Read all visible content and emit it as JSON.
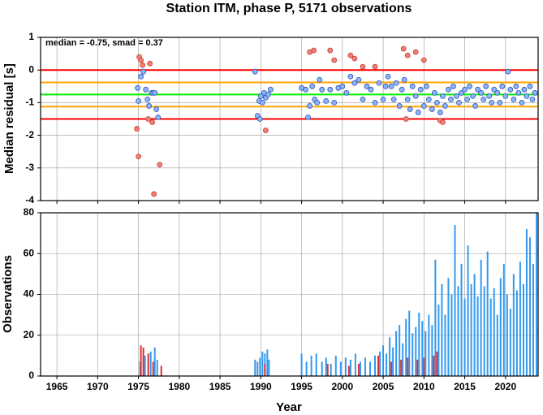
{
  "chart_data": [
    {
      "type": "scatter",
      "title": "Station ITM, phase P, 5171 observations",
      "ylabel": "Median residual [s]",
      "annotation": "median = -0.75, smad = 0.37",
      "xlim": [
        1963,
        2024
      ],
      "ylim": [
        -4,
        1
      ],
      "xticks": [
        1965,
        1970,
        1975,
        1980,
        1985,
        1990,
        1995,
        2000,
        2005,
        2010,
        2015,
        2020
      ],
      "yticks": [
        1,
        0,
        -1,
        -2,
        -3,
        -4
      ],
      "grid": true,
      "hlines": [
        {
          "value": 0,
          "color": "#ff0000"
        },
        {
          "value": -1.5,
          "color": "#ff0000"
        },
        {
          "value": -0.38,
          "color": "#ffa500"
        },
        {
          "value": -1.12,
          "color": "#ffa500"
        },
        {
          "value": -0.75,
          "color": "#00ee00"
        }
      ],
      "series": [
        {
          "color": "#8ab4ff",
          "x": [
            1974.9,
            1975.0,
            1975.3,
            1975.6,
            1975.9,
            1976.1,
            1976.3,
            1976.6,
            1976.8,
            1977.0,
            1977.2,
            1977.4,
            1989.3,
            1989.6,
            1989.8,
            1989.9,
            1990.0,
            1990.2,
            1990.4,
            1990.6,
            1990.9,
            1991.2,
            1995.0,
            1995.5,
            1995.8,
            1996.0,
            1996.3,
            1996.6,
            1996.9,
            1997.2,
            1997.5,
            1998.0,
            1998.5,
            1999.0,
            1999.5,
            2000.0,
            2000.5,
            2001.0,
            2001.5,
            2002.0,
            2002.5,
            2003.0,
            2003.5,
            2004.0,
            2004.5,
            2005.0,
            2005.3,
            2005.6,
            2006.0,
            2006.3,
            2006.6,
            2007.0,
            2007.3,
            2007.6,
            2008.0,
            2008.3,
            2008.6,
            2009.0,
            2009.3,
            2009.6,
            2010.0,
            2010.3,
            2010.6,
            2011.0,
            2011.3,
            2011.6,
            2012.0,
            2012.3,
            2012.6,
            2013.0,
            2013.3,
            2013.6,
            2014.0,
            2014.3,
            2014.6,
            2015.0,
            2015.3,
            2015.6,
            2016.0,
            2016.3,
            2016.6,
            2017.0,
            2017.3,
            2017.6,
            2018.0,
            2018.3,
            2018.6,
            2019.0,
            2019.3,
            2019.6,
            2020.0,
            2020.3,
            2020.6,
            2021.0,
            2021.3,
            2021.6,
            2022.0,
            2022.3,
            2022.6,
            2023.0,
            2023.3,
            2023.6
          ],
          "values": [
            -0.55,
            -0.95,
            -0.2,
            -0.05,
            -0.6,
            -0.9,
            -1.1,
            -0.7,
            -0.7,
            -0.7,
            -1.2,
            -1.45,
            -0.05,
            -1.4,
            -0.95,
            -1.5,
            -0.8,
            -1.0,
            -0.7,
            -0.85,
            -0.75,
            -0.6,
            -0.55,
            -0.6,
            -1.45,
            -1.1,
            -0.5,
            -0.9,
            -1.0,
            -0.3,
            -0.6,
            -0.95,
            -0.6,
            -1.0,
            -0.55,
            -0.5,
            -0.7,
            -0.2,
            -0.4,
            -0.3,
            -0.9,
            -0.5,
            -0.6,
            -1.0,
            -0.4,
            -0.9,
            -0.5,
            -0.2,
            -0.5,
            -0.9,
            -0.4,
            -1.1,
            -0.6,
            -0.3,
            -0.9,
            -1.2,
            -0.5,
            -0.8,
            -1.3,
            -0.6,
            -1.1,
            -0.5,
            -0.9,
            -1.2,
            -0.7,
            -1.0,
            -1.3,
            -0.8,
            -1.1,
            -0.6,
            -0.9,
            -0.5,
            -0.8,
            -1.0,
            -0.7,
            -0.6,
            -0.9,
            -0.5,
            -0.8,
            -1.1,
            -0.6,
            -0.7,
            -0.9,
            -0.5,
            -0.8,
            -1.0,
            -0.6,
            -0.7,
            -1.0,
            -0.5,
            -0.8,
            -0.05,
            -0.6,
            -0.9,
            -0.5,
            -0.7,
            -1.0,
            -0.6,
            -0.8,
            -0.5,
            -0.9,
            -0.7
          ]
        },
        {
          "color": "#f08070",
          "x": [
            1975.1,
            1975.3,
            1975.5,
            1976.4,
            1974.8,
            1975.0,
            1976.2,
            1976.7,
            1977.6,
            1976.9,
            1990.6,
            1996.0,
            1996.5,
            1998.5,
            1999.0,
            2001.0,
            2001.5,
            2002.5,
            2004.0,
            2007.5,
            2008.0,
            2009.0,
            2010.0,
            2007.8,
            2012.0,
            2012.3
          ],
          "values": [
            0.4,
            0.3,
            0.15,
            0.2,
            -1.8,
            -2.65,
            -1.5,
            -1.6,
            -2.9,
            -3.8,
            -1.85,
            0.55,
            0.6,
            0.6,
            0.3,
            0.45,
            0.35,
            0.1,
            0.1,
            0.65,
            0.45,
            0.55,
            0.3,
            -1.5,
            -1.55,
            -1.6
          ]
        }
      ]
    },
    {
      "type": "bar",
      "ylabel": "Observations",
      "xlabel": "Year",
      "xlim": [
        1963,
        2024
      ],
      "ylim": [
        0,
        80
      ],
      "xticks": [
        1965,
        1970,
        1975,
        1980,
        1985,
        1990,
        1995,
        2000,
        2005,
        2010,
        2015,
        2020
      ],
      "yticks": [
        0,
        20,
        40,
        60,
        80
      ],
      "grid": true,
      "series": [
        {
          "color": "#3399ee",
          "x": [
            1975.2,
            1975.8,
            1976.5,
            1977.0,
            1977.3,
            1989.3,
            1989.6,
            1989.9,
            1990.2,
            1990.5,
            1990.8,
            1991.0,
            1995.0,
            1995.6,
            1996.2,
            1996.8,
            1997.5,
            1998.0,
            1998.6,
            1999.2,
            1999.8,
            2000.4,
            2001.0,
            2001.6,
            2002.2,
            2002.8,
            2003.4,
            2004.0,
            2004.6,
            2005.0,
            2005.4,
            2005.8,
            2006.2,
            2006.6,
            2007.0,
            2007.4,
            2007.8,
            2008.2,
            2008.6,
            2009.0,
            2009.4,
            2009.8,
            2010.2,
            2010.6,
            2011.0,
            2011.4,
            2011.8,
            2012.2,
            2012.6,
            2013.0,
            2013.4,
            2013.8,
            2014.2,
            2014.6,
            2015.0,
            2015.4,
            2015.8,
            2016.2,
            2016.6,
            2017.0,
            2017.4,
            2017.8,
            2018.2,
            2018.6,
            2019.0,
            2019.4,
            2019.8,
            2020.2,
            2020.6,
            2021.0,
            2021.4,
            2021.8,
            2022.2,
            2022.6,
            2023.0,
            2023.4,
            2023.8
          ],
          "values": [
            7,
            10,
            12,
            14,
            8,
            8,
            7,
            9,
            12,
            11,
            13,
            8,
            11,
            7,
            10,
            11,
            7,
            9,
            6,
            10,
            7,
            9,
            8,
            11,
            7,
            9,
            7,
            10,
            12,
            15,
            11,
            19,
            14,
            22,
            25,
            16,
            28,
            32,
            21,
            24,
            31,
            27,
            22,
            30,
            25,
            57,
            35,
            45,
            30,
            48,
            40,
            74,
            44,
            55,
            38,
            64,
            45,
            50,
            39,
            57,
            44,
            61,
            38,
            43,
            30,
            48,
            55,
            40,
            33,
            50,
            42,
            56,
            45,
            72,
            68,
            55,
            80
          ]
        },
        {
          "color": "#e03030",
          "x": [
            1975.3,
            1975.6,
            1976.2,
            1976.8,
            1977.8,
            1990.5,
            1998.2,
            2000.8,
            2002.0,
            2004.4,
            2006.0,
            2007.2,
            2008.0,
            2009.2,
            2010.0,
            2011.2,
            2011.6
          ],
          "values": [
            15,
            14,
            11,
            7,
            5,
            6,
            6,
            5,
            6,
            10,
            7,
            8,
            9,
            8,
            9,
            10,
            12
          ]
        }
      ]
    }
  ]
}
